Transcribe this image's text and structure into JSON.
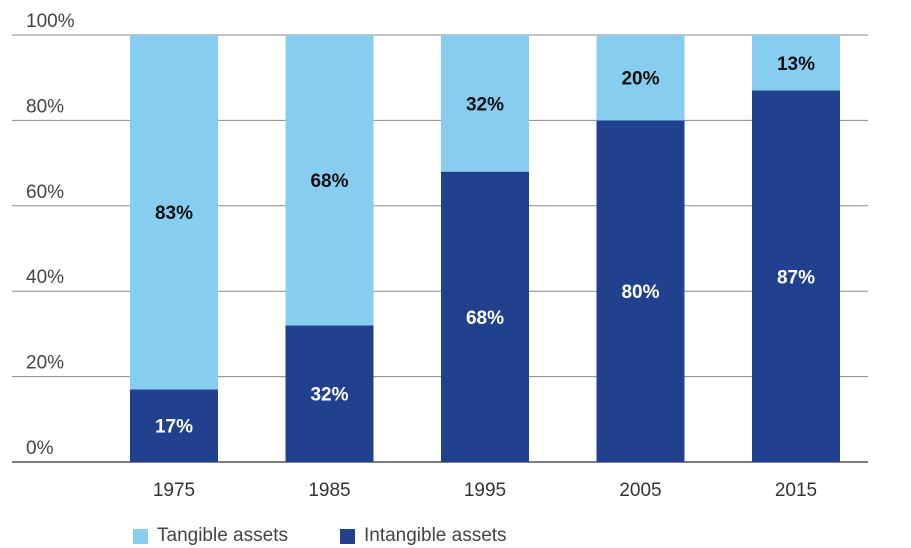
{
  "chart_data": {
    "type": "bar",
    "stacked": true,
    "percent": true,
    "title": "",
    "xlabel": "",
    "ylabel": "",
    "ylim": [
      0,
      100
    ],
    "y_ticks": [
      "0%",
      "20%",
      "40%",
      "60%",
      "80%",
      "100%"
    ],
    "categories": [
      "1975",
      "1985",
      "1995",
      "2005",
      "2015"
    ],
    "series": [
      {
        "name": "Intangible assets",
        "color": "#21418f",
        "label_color": "#ffffff",
        "values": [
          17,
          32,
          68,
          80,
          87
        ],
        "labels": [
          "17%",
          "32%",
          "68%",
          "80%",
          "87%"
        ]
      },
      {
        "name": "Tangible assets",
        "color": "#86cdf0",
        "label_color": "#111111",
        "values": [
          83,
          68,
          32,
          20,
          13
        ],
        "labels": [
          "83%",
          "68%",
          "32%",
          "20%",
          "13%"
        ]
      }
    ],
    "grid": true,
    "legend_position": "bottom-left"
  }
}
